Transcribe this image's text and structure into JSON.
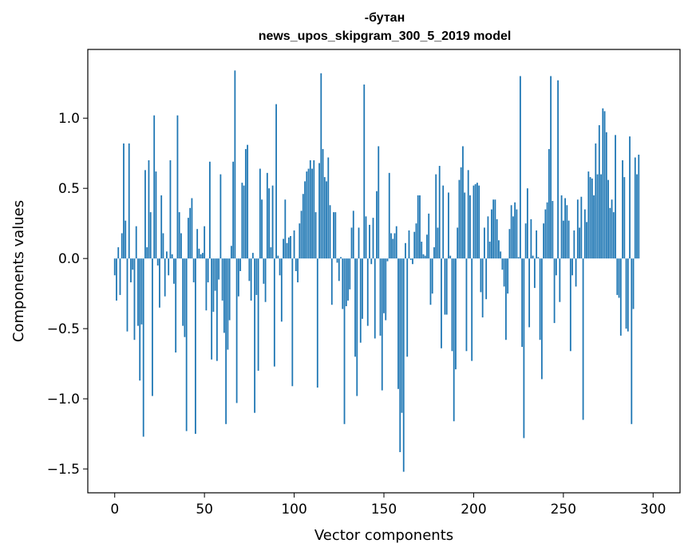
{
  "chart_data": {
    "type": "bar",
    "title": "-бутан",
    "subtitle": "news_upos_skipgram_300_5_2019 model",
    "xlabel": "Vector components",
    "ylabel": "Components values",
    "xlim": [
      -15,
      315
    ],
    "ylim": [
      -1.67,
      1.49
    ],
    "xticks": [
      0,
      50,
      100,
      150,
      200,
      250,
      300
    ],
    "xtick_labels": [
      "0",
      "50",
      "100",
      "150",
      "200",
      "250",
      "300"
    ],
    "yticks": [
      -1.5,
      -1.0,
      -0.5,
      0.0,
      0.5,
      1.0
    ],
    "ytick_labels": [
      "−1.5",
      "−1.0",
      "−0.5",
      "0.0",
      "0.5",
      "1.0"
    ],
    "bar_color": "#1f77b4",
    "grid": false,
    "values": [
      -0.12,
      -0.3,
      0.08,
      -0.26,
      0.18,
      0.82,
      0.27,
      -0.52,
      0.82,
      -0.17,
      -0.08,
      -0.58,
      0.23,
      -0.48,
      -0.87,
      -0.47,
      -1.27,
      0.63,
      0.08,
      0.7,
      0.33,
      -0.98,
      1.02,
      0.62,
      -0.05,
      -0.35,
      0.45,
      0.18,
      -0.27,
      0.05,
      -0.12,
      0.7,
      0.03,
      -0.18,
      -0.67,
      1.02,
      0.33,
      0.18,
      -0.48,
      -0.56,
      -1.23,
      0.29,
      0.36,
      0.43,
      -0.17,
      -1.25,
      0.21,
      0.07,
      0.03,
      0.04,
      0.23,
      -0.37,
      -0.17,
      0.69,
      -0.72,
      -0.38,
      -0.23,
      -0.73,
      -0.15,
      0.6,
      -0.3,
      -0.53,
      -1.18,
      -0.65,
      -0.44,
      0.09,
      0.69,
      1.34,
      -1.03,
      -0.27,
      -0.09,
      0.54,
      0.52,
      0.78,
      0.81,
      -0.16,
      -0.3,
      0.04,
      -1.1,
      -0.26,
      -0.8,
      0.64,
      0.42,
      -0.18,
      -0.31,
      0.61,
      0.5,
      0.08,
      0.52,
      -0.77,
      1.1,
      0.02,
      -0.12,
      -0.45,
      0.14,
      0.42,
      0.11,
      0.15,
      0.16,
      -0.91,
      0.2,
      -0.09,
      -0.17,
      0.25,
      0.34,
      0.46,
      0.55,
      0.62,
      0.64,
      0.7,
      0.64,
      0.7,
      0.33,
      -0.92,
      0.68,
      1.32,
      0.78,
      0.58,
      0.55,
      0.72,
      0.38,
      -0.33,
      0.33,
      0.33,
      -0.03,
      -0.16,
      0.01,
      -0.36,
      -1.18,
      -0.34,
      -0.3,
      -0.22,
      0.22,
      0.34,
      -0.7,
      -0.98,
      0.22,
      -0.6,
      -0.43,
      1.24,
      0.3,
      -0.48,
      0.24,
      -0.04,
      0.29,
      -0.57,
      0.48,
      0.8,
      -0.55,
      -0.94,
      -0.39,
      -0.44,
      -0.02,
      0.61,
      0.18,
      0.14,
      0.18,
      0.23,
      -0.93,
      -1.38,
      -1.1,
      -1.52,
      0.11,
      -0.7,
      0.2,
      -0.01,
      -0.04,
      0.19,
      0.25,
      0.45,
      0.45,
      0.12,
      0.03,
      0.02,
      0.17,
      0.32,
      -0.33,
      -0.25,
      0.08,
      0.6,
      0.22,
      0.66,
      -0.64,
      0.52,
      -0.4,
      -0.4,
      0.47,
      0.02,
      -0.66,
      -1.16,
      -0.79,
      0.22,
      0.56,
      0.65,
      0.8,
      0.47,
      -0.66,
      0.63,
      0.45,
      -0.73,
      0.52,
      0.53,
      0.54,
      0.52,
      -0.24,
      -0.42,
      0.22,
      -0.29,
      0.3,
      0.12,
      0.35,
      0.42,
      0.42,
      0.28,
      0.13,
      0.05,
      -0.08,
      -0.2,
      -0.58,
      -0.25,
      0.21,
      0.38,
      0.3,
      0.4,
      0.35,
      0.01,
      1.3,
      -0.63,
      -1.28,
      0.25,
      0.5,
      -0.49,
      0.28,
      0.02,
      -0.21,
      0.2,
      0.01,
      -0.58,
      -0.86,
      0.25,
      0.35,
      0.4,
      0.78,
      1.3,
      0.41,
      -0.46,
      -0.12,
      1.27,
      -0.31,
      0.45,
      0.27,
      0.43,
      0.38,
      0.27,
      -0.66,
      -0.12,
      0.2,
      -0.2,
      0.42,
      0.22,
      0.44,
      -1.15,
      0.35,
      0.26,
      0.62,
      0.58,
      0.57,
      0.45,
      0.82,
      0.6,
      0.95,
      0.6,
      1.07,
      1.05,
      0.9,
      0.56,
      0.36,
      0.42,
      0.33,
      0.88,
      -0.26,
      -0.28,
      -0.55,
      0.7,
      0.58,
      -0.5,
      -0.52,
      0.87,
      -1.18,
      -0.36,
      0.72,
      0.6,
      0.74
    ]
  }
}
